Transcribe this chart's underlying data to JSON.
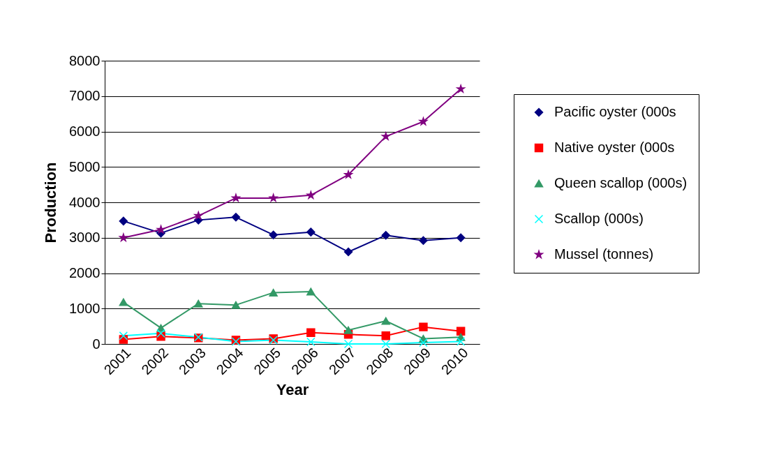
{
  "chart_data": {
    "type": "line",
    "xlabel": "Year",
    "ylabel": "Production",
    "categories": [
      "2001",
      "2002",
      "2003",
      "2004",
      "2005",
      "2006",
      "2007",
      "2008",
      "2009",
      "2010"
    ],
    "ylim": [
      0,
      8000
    ],
    "yticks": [
      0,
      1000,
      2000,
      3000,
      4000,
      5000,
      6000,
      7000,
      8000
    ],
    "grid": "y",
    "legend": "right",
    "line_style": "solid",
    "series": [
      {
        "name": "Pacific oyster (000s",
        "color": "#000080",
        "marker": "diamond",
        "values": [
          3470,
          3130,
          3500,
          3580,
          3080,
          3160,
          2600,
          3070,
          2920,
          3000
        ]
      },
      {
        "name": "Native oyster (000s",
        "color": "#ff0000",
        "marker": "square",
        "values": [
          130,
          210,
          170,
          110,
          150,
          320,
          270,
          230,
          480,
          360
        ]
      },
      {
        "name": "Queen scallop (000s)",
        "color": "#339966",
        "marker": "triangle",
        "values": [
          1180,
          450,
          1140,
          1100,
          1450,
          1480,
          390,
          650,
          150,
          190
        ]
      },
      {
        "name": "Scallop (000s)",
        "color": "#00ffff",
        "marker": "cross",
        "values": [
          230,
          300,
          190,
          70,
          110,
          60,
          0,
          0,
          40,
          70
        ]
      },
      {
        "name": "Mussel (tonnes)",
        "color": "#800080",
        "marker": "star",
        "values": [
          3000,
          3230,
          3620,
          4120,
          4120,
          4200,
          4780,
          5860,
          6280,
          7200
        ]
      }
    ]
  }
}
